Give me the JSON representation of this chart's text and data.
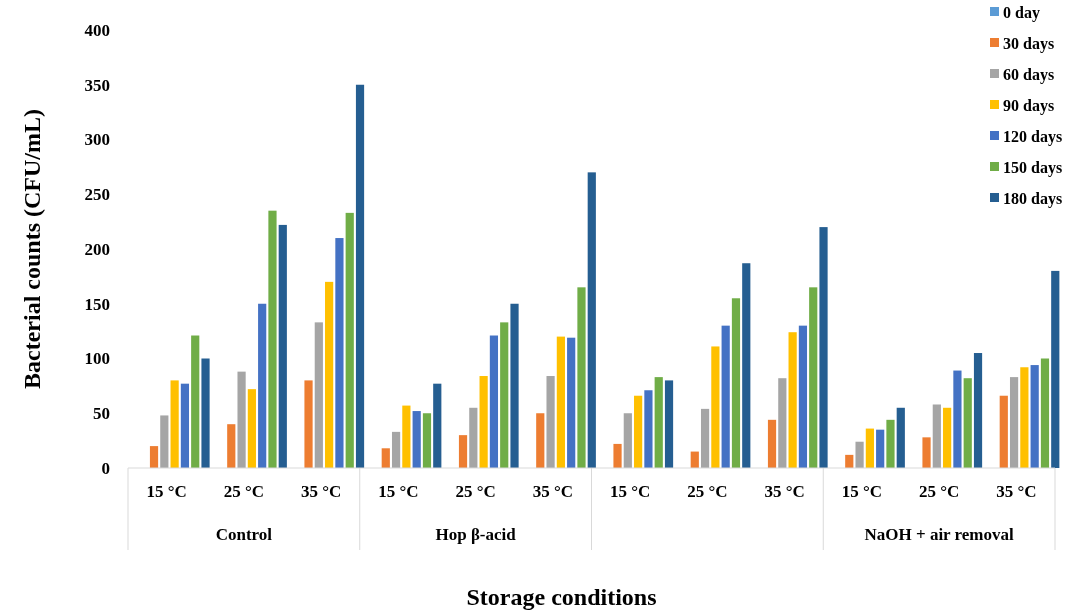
{
  "chart_data": {
    "type": "bar",
    "xlabel": "Storage conditions",
    "ylabel": "Bacterial counts (CFU/mL)",
    "categories": [
      "15 °C",
      "25 °C",
      "35 °C",
      "15 °C",
      "25 °C",
      "35 °C",
      "15 °C",
      "25 °C",
      "35 °C",
      "15 °C",
      "25 °C",
      "35 °C"
    ],
    "annotations": [
      "Control",
      "Hop β-acid",
      "NaOH + air removal"
    ],
    "series": [
      {
        "name": "0 day",
        "color": "#5b9bd5",
        "values": [
          0,
          0,
          0,
          0,
          0,
          0,
          0,
          0,
          0,
          0,
          0,
          0
        ]
      },
      {
        "name": "30 days",
        "color": "#ed7d31",
        "values": [
          20,
          40,
          80,
          18,
          30,
          50,
          22,
          15,
          44,
          12,
          28,
          66
        ]
      },
      {
        "name": "60 days",
        "color": "#a5a5a5",
        "values": [
          48,
          88,
          133,
          33,
          55,
          84,
          50,
          54,
          82,
          24,
          58,
          83
        ]
      },
      {
        "name": "90 days",
        "color": "#ffc000",
        "values": [
          80,
          72,
          170,
          57,
          84,
          120,
          66,
          111,
          124,
          36,
          55,
          92
        ]
      },
      {
        "name": "120 days",
        "color": "#4472c4",
        "values": [
          77,
          150,
          210,
          52,
          121,
          119,
          71,
          130,
          130,
          35,
          89,
          94
        ]
      },
      {
        "name": "150 days",
        "color": "#70ad47",
        "values": [
          121,
          235,
          233,
          50,
          133,
          165,
          83,
          155,
          165,
          44,
          82,
          100
        ]
      },
      {
        "name": "180 days",
        "color": "#255e91",
        "values": [
          100,
          222,
          350,
          77,
          150,
          270,
          80,
          187,
          220,
          55,
          105,
          180
        ]
      }
    ],
    "ylim": [
      0,
      400
    ],
    "yticks": [
      0,
      50,
      100,
      150,
      200,
      250,
      300,
      350,
      400
    ],
    "grid": false,
    "legend": "top right"
  }
}
